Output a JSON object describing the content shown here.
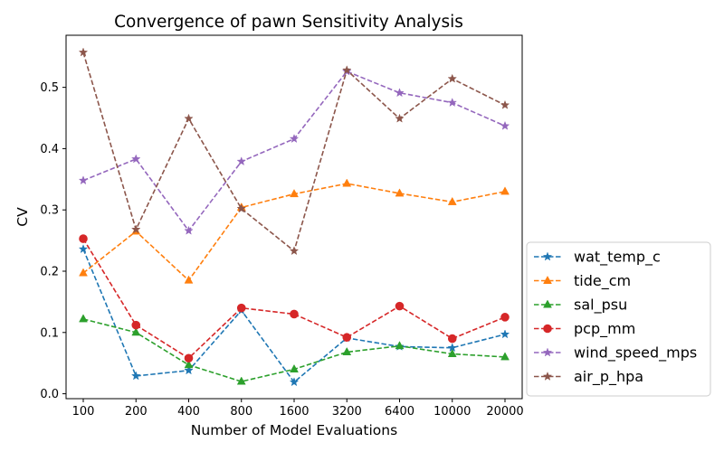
{
  "chart_data": {
    "type": "line",
    "title": "Convergence of pawn Sensitivity Analysis",
    "xlabel": "Number of Model Evaluations",
    "ylabel": "CV",
    "categories": [
      "100",
      "200",
      "400",
      "800",
      "1600",
      "3200",
      "6400",
      "10000",
      "20000"
    ],
    "ylim": [
      -0.008,
      0.585
    ],
    "yticks": [
      "0.0",
      "0.1",
      "0.2",
      "0.3",
      "0.4",
      "0.5"
    ],
    "ytick_values": [
      0.0,
      0.1,
      0.2,
      0.3,
      0.4,
      0.5
    ],
    "grid": false,
    "legend_placement": "outside-right-bottom",
    "series": [
      {
        "name": "wat_temp_c",
        "color": "#1f77b4",
        "marker": "star",
        "values": [
          0.236,
          0.029,
          0.038,
          0.136,
          0.019,
          0.091,
          0.077,
          0.075,
          0.097
        ]
      },
      {
        "name": "tide_cm",
        "color": "#ff7f0e",
        "marker": "triangle",
        "values": [
          0.197,
          0.265,
          0.185,
          0.304,
          0.326,
          0.343,
          0.327,
          0.313,
          0.33
        ]
      },
      {
        "name": "sal_psu",
        "color": "#2ca02c",
        "marker": "triangle",
        "values": [
          0.122,
          0.1,
          0.047,
          0.02,
          0.04,
          0.068,
          0.078,
          0.065,
          0.06
        ]
      },
      {
        "name": "pcp_mm",
        "color": "#d62728",
        "marker": "circle",
        "values": [
          0.253,
          0.112,
          0.058,
          0.14,
          0.13,
          0.092,
          0.143,
          0.09,
          0.125
        ]
      },
      {
        "name": "wind_speed_mps",
        "color": "#9467bd",
        "marker": "star",
        "values": [
          0.348,
          0.383,
          0.266,
          0.379,
          0.416,
          0.526,
          0.491,
          0.475,
          0.437
        ]
      },
      {
        "name": "air_p_hpa",
        "color": "#8c564b",
        "marker": "star",
        "values": [
          0.557,
          0.268,
          0.449,
          0.302,
          0.233,
          0.528,
          0.449,
          0.514,
          0.471
        ]
      }
    ]
  }
}
